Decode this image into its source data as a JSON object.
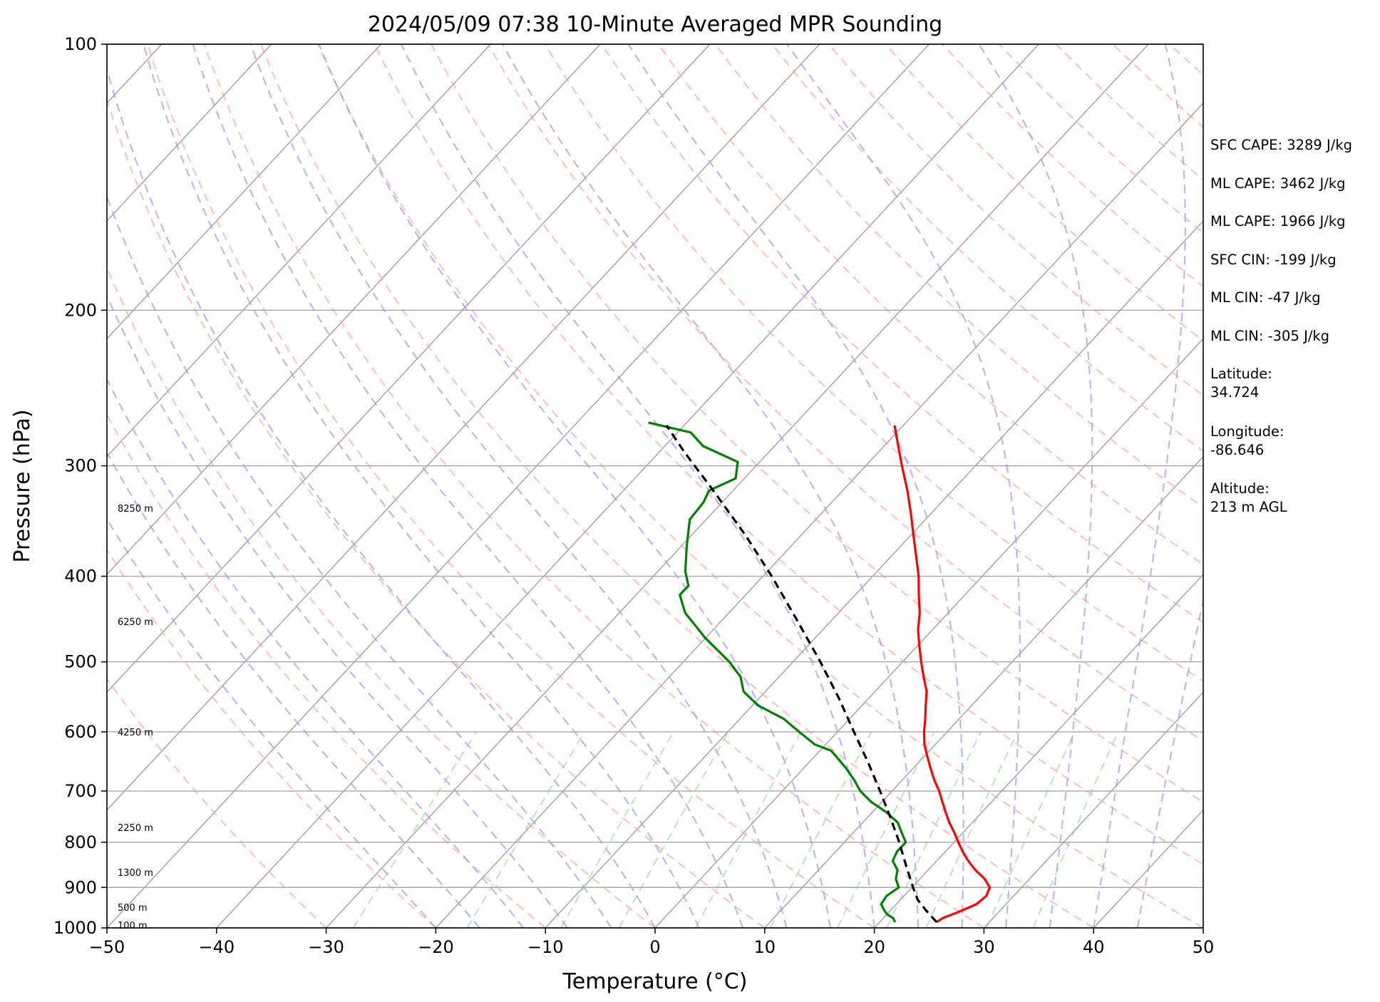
{
  "chart_data": {
    "type": "line",
    "title": "2024/05/09 07:38 10-Minute Averaged MPR Sounding",
    "xlabel": "Temperature (°C)",
    "ylabel": "Pressure (hPa)",
    "xlim": [
      -50,
      50
    ],
    "ylim": [
      1000,
      100
    ],
    "y_scale": "log",
    "skew": "skew-T",
    "grid": true,
    "x_ticks": [
      "−50",
      "−40",
      "−30",
      "−20",
      "−10",
      "0",
      "10",
      "20",
      "30",
      "40",
      "50"
    ],
    "y_ticks": [
      100,
      200,
      300,
      400,
      500,
      600,
      700,
      800,
      900,
      1000
    ],
    "series": [
      {
        "kind": "temperature",
        "color": "#ff0000",
        "style": "solid",
        "points": [
          {
            "p": 985,
            "t": 25.2
          },
          {
            "p": 975,
            "t": 25.4
          },
          {
            "p": 960,
            "t": 26.3
          },
          {
            "p": 940,
            "t": 27.3
          },
          {
            "p": 920,
            "t": 27.5
          },
          {
            "p": 900,
            "t": 27.1
          },
          {
            "p": 880,
            "t": 25.9
          },
          {
            "p": 860,
            "t": 24.3
          },
          {
            "p": 840,
            "t": 22.9
          },
          {
            "p": 820,
            "t": 21.6
          },
          {
            "p": 800,
            "t": 20.4
          },
          {
            "p": 780,
            "t": 19.2
          },
          {
            "p": 760,
            "t": 17.9
          },
          {
            "p": 740,
            "t": 16.7
          },
          {
            "p": 720,
            "t": 15.5
          },
          {
            "p": 700,
            "t": 14.3
          },
          {
            "p": 680,
            "t": 12.9
          },
          {
            "p": 660,
            "t": 11.6
          },
          {
            "p": 640,
            "t": 10.3
          },
          {
            "p": 620,
            "t": 9.0
          },
          {
            "p": 600,
            "t": 7.9
          },
          {
            "p": 580,
            "t": 6.9
          },
          {
            "p": 560,
            "t": 5.8
          },
          {
            "p": 540,
            "t": 4.7
          },
          {
            "p": 520,
            "t": 3.2
          },
          {
            "p": 500,
            "t": 1.7
          },
          {
            "p": 480,
            "t": 0.2
          },
          {
            "p": 460,
            "t": -1.3
          },
          {
            "p": 440,
            "t": -2.6
          },
          {
            "p": 420,
            "t": -4.2
          },
          {
            "p": 400,
            "t": -5.8
          },
          {
            "p": 380,
            "t": -7.7
          },
          {
            "p": 360,
            "t": -9.7
          },
          {
            "p": 340,
            "t": -11.8
          },
          {
            "p": 320,
            "t": -14.1
          },
          {
            "p": 300,
            "t": -16.7
          },
          {
            "p": 285,
            "t": -18.7
          },
          {
            "p": 270,
            "t": -20.8
          }
        ]
      },
      {
        "kind": "dewpoint",
        "color": "#008000",
        "style": "solid",
        "points": [
          {
            "p": 985,
            "t": 21.4
          },
          {
            "p": 975,
            "t": 20.9
          },
          {
            "p": 965,
            "t": 20.0
          },
          {
            "p": 955,
            "t": 19.4
          },
          {
            "p": 940,
            "t": 18.6
          },
          {
            "p": 920,
            "t": 18.4
          },
          {
            "p": 900,
            "t": 18.8
          },
          {
            "p": 880,
            "t": 17.8
          },
          {
            "p": 860,
            "t": 17.2
          },
          {
            "p": 840,
            "t": 16.0
          },
          {
            "p": 820,
            "t": 15.6
          },
          {
            "p": 800,
            "t": 15.6
          },
          {
            "p": 780,
            "t": 14.4
          },
          {
            "p": 760,
            "t": 13.2
          },
          {
            "p": 740,
            "t": 11.3
          },
          {
            "p": 720,
            "t": 9.0
          },
          {
            "p": 700,
            "t": 7.1
          },
          {
            "p": 680,
            "t": 5.6
          },
          {
            "p": 660,
            "t": 3.9
          },
          {
            "p": 640,
            "t": 2.0
          },
          {
            "p": 630,
            "t": 1.0
          },
          {
            "p": 620,
            "t": -1.0
          },
          {
            "p": 600,
            "t": -3.5
          },
          {
            "p": 580,
            "t": -6.0
          },
          {
            "p": 560,
            "t": -9.5
          },
          {
            "p": 540,
            "t": -12.0
          },
          {
            "p": 520,
            "t": -13.5
          },
          {
            "p": 500,
            "t": -15.8
          },
          {
            "p": 470,
            "t": -20.0
          },
          {
            "p": 440,
            "t": -24.0
          },
          {
            "p": 420,
            "t": -26.0
          },
          {
            "p": 410,
            "t": -26.0
          },
          {
            "p": 395,
            "t": -27.5
          },
          {
            "p": 370,
            "t": -29.5
          },
          {
            "p": 345,
            "t": -31.5
          },
          {
            "p": 330,
            "t": -31.7
          },
          {
            "p": 320,
            "t": -32.2
          },
          {
            "p": 310,
            "t": -30.8
          },
          {
            "p": 297,
            "t": -32.0
          },
          {
            "p": 285,
            "t": -36.5
          },
          {
            "p": 275,
            "t": -38.8
          },
          {
            "p": 268,
            "t": -43.5
          }
        ]
      },
      {
        "kind": "parcel",
        "color": "#000000",
        "style": "dashed",
        "points": [
          {
            "p": 985,
            "t": 25.2
          },
          {
            "p": 955,
            "t": 23.2
          },
          {
            "p": 930,
            "t": 21.6
          },
          {
            "p": 900,
            "t": 20.1
          },
          {
            "p": 850,
            "t": 17.6
          },
          {
            "p": 800,
            "t": 15.0
          },
          {
            "p": 750,
            "t": 12.1
          },
          {
            "p": 700,
            "t": 8.9
          },
          {
            "p": 650,
            "t": 5.4
          },
          {
            "p": 600,
            "t": 1.5
          },
          {
            "p": 550,
            "t": -2.7
          },
          {
            "p": 500,
            "t": -7.5
          },
          {
            "p": 450,
            "t": -13.0
          },
          {
            "p": 400,
            "t": -19.2
          },
          {
            "p": 360,
            "t": -25.0
          },
          {
            "p": 320,
            "t": -31.8
          },
          {
            "p": 290,
            "t": -37.6
          },
          {
            "p": 270,
            "t": -41.6
          }
        ]
      }
    ],
    "reference_lines": {
      "dry_adiabats": {
        "color": "#ff9999",
        "style": "dashed"
      },
      "moist_adiabats": {
        "color": "#9999ff",
        "style": "dashed"
      },
      "mixing_ratio": {
        "color": "#99cc99",
        "style": "dashed"
      },
      "isotherms": {
        "color": "#a0a0a0",
        "style": "solid"
      }
    },
    "height_labels": [
      {
        "p": 335,
        "label": "8250 m"
      },
      {
        "p": 450,
        "label": "6250 m"
      },
      {
        "p": 600,
        "label": "4250 m"
      },
      {
        "p": 770,
        "label": "2250 m"
      },
      {
        "p": 865,
        "label": "1300 m"
      },
      {
        "p": 948,
        "label": "500 m"
      },
      {
        "p": 993,
        "label": "100 m"
      }
    ]
  },
  "info_panel": {
    "sfc_cape": "SFC CAPE: 3289 J/kg",
    "ml_cape_1": "ML CAPE: 3462 J/kg",
    "ml_cape_2": "ML CAPE: 1966 J/kg",
    "sfc_cin": "SFC CIN: -199 J/kg",
    "ml_cin_1": "ML CIN: -47 J/kg",
    "ml_cin_2": "ML CIN: -305 J/kg",
    "latitude_label": "Latitude:",
    "latitude_value": "34.724",
    "longitude_label": "Longitude:",
    "longitude_value": "-86.646",
    "altitude_label": "Altitude:",
    "altitude_value": "213 m AGL"
  }
}
